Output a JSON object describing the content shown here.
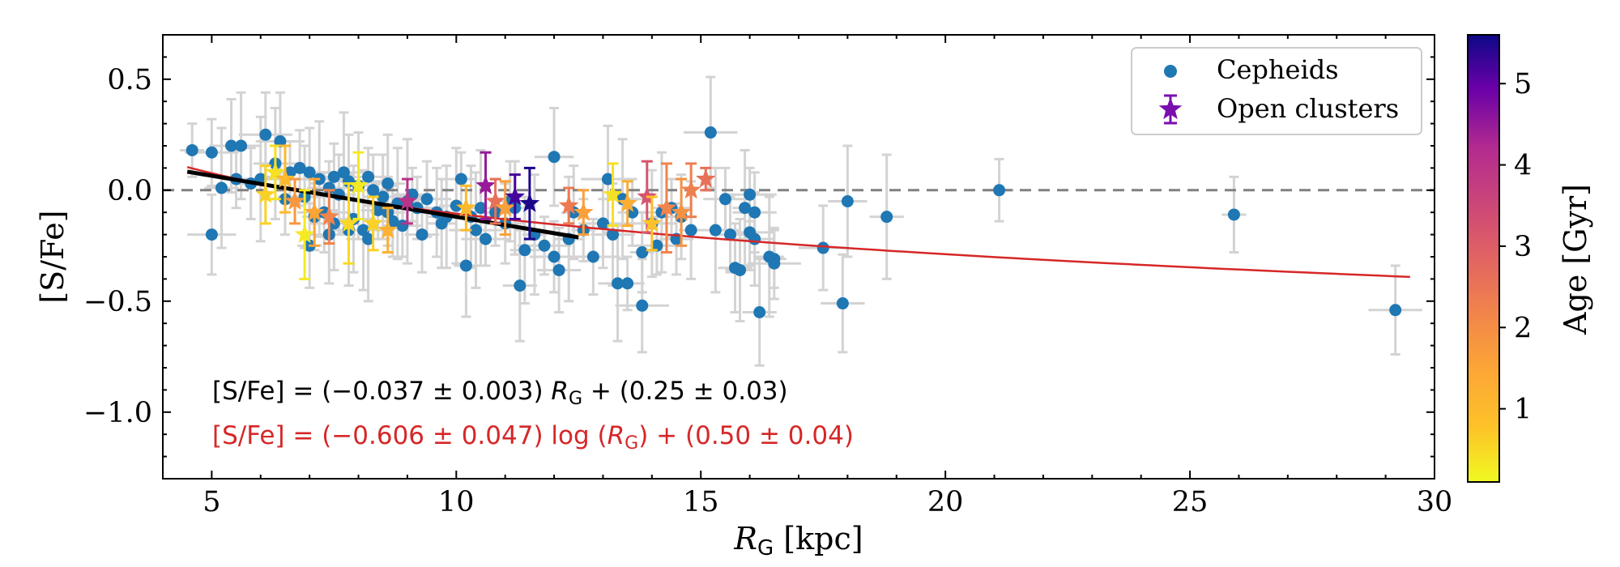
{
  "chart_data": {
    "type": "scatter",
    "xlabel": "R_G [kpc]",
    "ylabel": "[S/Fe]",
    "xlim": [
      4,
      30
    ],
    "ylim": [
      -1.3,
      0.7
    ],
    "xticks": [
      5,
      10,
      15,
      20,
      25,
      30
    ],
    "xtick_labels": [
      "5",
      "10",
      "15",
      "20",
      "25",
      "30"
    ],
    "yticks": [
      0.5,
      0.0,
      -0.5,
      -1.0
    ],
    "ytick_labels": [
      "0.5",
      "0.0",
      "−0.5",
      "−1.0"
    ],
    "reference_line_y": 0.0,
    "legend": {
      "position": "top-right",
      "entries": [
        {
          "label": "Cepheids",
          "marker": "circle",
          "color": "#1f77b4"
        },
        {
          "label": "Open clusters",
          "marker": "star",
          "color": "#7a0fb0"
        }
      ]
    },
    "colorbar": {
      "label": "Age [Gyr]",
      "range": [
        0.1,
        5.6
      ],
      "ticks": [
        1,
        2,
        3,
        4,
        5
      ],
      "tick_labels": [
        "1",
        "2",
        "3",
        "4",
        "5"
      ],
      "colormap": "plasma_r"
    },
    "fits": [
      {
        "name": "linear",
        "color": "#000000",
        "x_range": [
          4.5,
          12.5
        ],
        "slope": -0.037,
        "intercept": 0.25,
        "equation_parts": [
          "[S/Fe] = (−0.037 ± 0.003) ",
          "R",
          "G",
          " + (0.25 ± 0.03)"
        ]
      },
      {
        "name": "logarithmic",
        "color": "#d62728",
        "x_range": [
          4.5,
          29.5
        ],
        "coef": -0.606,
        "intercept": 0.5,
        "equation_parts": [
          "[S/Fe] = (−0.606 ± 0.047) log (",
          "R",
          "G",
          ") + (0.50 ± 0.04)"
        ]
      }
    ],
    "cepheids": [
      [
        4.6,
        0.18
      ],
      [
        5.0,
        0.17
      ],
      [
        5.0,
        -0.2
      ],
      [
        5.4,
        0.2
      ],
      [
        5.6,
        0.2
      ],
      [
        5.2,
        0.01
      ],
      [
        5.5,
        0.05
      ],
      [
        5.8,
        0.03
      ],
      [
        6.1,
        0.25
      ],
      [
        6.4,
        0.22
      ],
      [
        6.3,
        0.12
      ],
      [
        6.0,
        0.05
      ],
      [
        6.6,
        0.08
      ],
      [
        6.8,
        0.1
      ],
      [
        7.0,
        0.08
      ],
      [
        6.9,
        -0.03
      ],
      [
        7.2,
        0.05
      ],
      [
        7.4,
        0.01
      ],
      [
        7.5,
        0.06
      ],
      [
        7.6,
        -0.02
      ],
      [
        7.8,
        0.04
      ],
      [
        8.0,
        0.02
      ],
      [
        7.7,
        0.08
      ],
      [
        8.2,
        0.06
      ],
      [
        8.3,
        0.0
      ],
      [
        8.5,
        -0.03
      ],
      [
        8.6,
        0.03
      ],
      [
        8.8,
        -0.06
      ],
      [
        9.0,
        -0.05
      ],
      [
        9.2,
        -0.08
      ],
      [
        9.4,
        -0.04
      ],
      [
        9.6,
        -0.1
      ],
      [
        9.8,
        -0.12
      ],
      [
        10.0,
        -0.07
      ],
      [
        10.1,
        0.05
      ],
      [
        7.1,
        -0.12
      ],
      [
        7.3,
        -0.1
      ],
      [
        7.5,
        -0.15
      ],
      [
        7.9,
        -0.13
      ],
      [
        8.1,
        -0.18
      ],
      [
        8.4,
        -0.09
      ],
      [
        8.7,
        -0.14
      ],
      [
        7.0,
        -0.25
      ],
      [
        7.4,
        -0.2
      ],
      [
        7.8,
        -0.18
      ],
      [
        8.2,
        -0.22
      ],
      [
        8.9,
        -0.16
      ],
      [
        9.3,
        -0.2
      ],
      [
        9.7,
        -0.15
      ],
      [
        10.2,
        -0.34
      ],
      [
        10.4,
        -0.18
      ],
      [
        10.6,
        -0.22
      ],
      [
        10.8,
        -0.1
      ],
      [
        11.0,
        -0.15
      ],
      [
        11.2,
        -0.08
      ],
      [
        11.4,
        -0.27
      ],
      [
        11.6,
        -0.2
      ],
      [
        11.8,
        -0.25
      ],
      [
        12.0,
        -0.3
      ],
      [
        12.1,
        -0.36
      ],
      [
        12.0,
        0.15
      ],
      [
        11.3,
        -0.43
      ],
      [
        12.3,
        -0.22
      ],
      [
        12.6,
        -0.18
      ],
      [
        12.8,
        -0.3
      ],
      [
        13.0,
        -0.15
      ],
      [
        13.2,
        -0.2
      ],
      [
        13.3,
        -0.42
      ],
      [
        13.5,
        -0.42
      ],
      [
        13.6,
        -0.1
      ],
      [
        13.8,
        -0.28
      ],
      [
        13.8,
        -0.52
      ],
      [
        14.0,
        -0.15
      ],
      [
        14.2,
        -0.1
      ],
      [
        14.4,
        -0.08
      ],
      [
        14.5,
        -0.22
      ],
      [
        14.6,
        -0.12
      ],
      [
        14.8,
        -0.18
      ],
      [
        15.2,
        0.26
      ],
      [
        15.3,
        -0.18
      ],
      [
        15.5,
        -0.04
      ],
      [
        15.6,
        -0.2
      ],
      [
        15.7,
        -0.35
      ],
      [
        15.8,
        -0.36
      ],
      [
        15.9,
        -0.08
      ],
      [
        16.0,
        -0.02
      ],
      [
        16.0,
        -0.19
      ],
      [
        16.1,
        -0.1
      ],
      [
        16.1,
        -0.22
      ],
      [
        16.2,
        -0.55
      ],
      [
        16.4,
        -0.3
      ],
      [
        16.5,
        -0.31
      ],
      [
        16.5,
        -0.33
      ],
      [
        17.5,
        -0.26
      ],
      [
        17.9,
        -0.51
      ],
      [
        18.0,
        -0.05
      ],
      [
        18.8,
        -0.12
      ],
      [
        21.1,
        0.0
      ],
      [
        25.9,
        -0.11
      ],
      [
        29.2,
        -0.54
      ],
      [
        10.3,
        -0.12
      ],
      [
        10.5,
        -0.08
      ],
      [
        9.1,
        -0.02
      ],
      [
        8.6,
        -0.1
      ],
      [
        11.1,
        -0.05
      ],
      [
        12.4,
        -0.1
      ],
      [
        13.1,
        0.05
      ],
      [
        13.4,
        -0.04
      ],
      [
        14.1,
        -0.25
      ],
      [
        6.5,
        -0.04
      ]
    ],
    "open_clusters": [
      [
        6.1,
        -0.02,
        0.6,
        0.13
      ],
      [
        6.3,
        0.08,
        0.4,
        0.12
      ],
      [
        6.5,
        0.05,
        1.0,
        0.15
      ],
      [
        6.7,
        -0.05,
        1.8,
        0.1
      ],
      [
        6.9,
        -0.2,
        0.3,
        0.2
      ],
      [
        7.1,
        -0.1,
        1.5,
        0.15
      ],
      [
        7.4,
        -0.12,
        2.2,
        0.12
      ],
      [
        7.8,
        -0.15,
        0.5,
        0.18
      ],
      [
        8.0,
        0.02,
        0.3,
        0.15
      ],
      [
        8.3,
        -0.15,
        0.6,
        0.12
      ],
      [
        8.6,
        -0.18,
        1.2,
        0.1
      ],
      [
        9.0,
        -0.05,
        4.0,
        0.1
      ],
      [
        10.2,
        -0.08,
        1.0,
        0.1
      ],
      [
        10.6,
        0.02,
        4.5,
        0.15
      ],
      [
        10.8,
        -0.05,
        2.6,
        0.1
      ],
      [
        11.0,
        -0.08,
        1.6,
        0.12
      ],
      [
        11.2,
        -0.03,
        5.2,
        0.1
      ],
      [
        11.5,
        -0.06,
        5.5,
        0.16
      ],
      [
        12.3,
        -0.07,
        2.4,
        0.08
      ],
      [
        12.6,
        -0.1,
        1.6,
        0.1
      ],
      [
        13.2,
        -0.02,
        0.4,
        0.14
      ],
      [
        13.5,
        -0.06,
        1.3,
        0.1
      ],
      [
        13.9,
        -0.03,
        3.2,
        0.16
      ],
      [
        14.0,
        -0.15,
        0.8,
        0.12
      ],
      [
        14.3,
        -0.08,
        2.2,
        0.2
      ],
      [
        14.6,
        -0.1,
        1.9,
        0.15
      ],
      [
        14.8,
        0.0,
        2.3,
        0.12
      ],
      [
        15.1,
        0.05,
        2.6,
        0.05
      ]
    ]
  }
}
